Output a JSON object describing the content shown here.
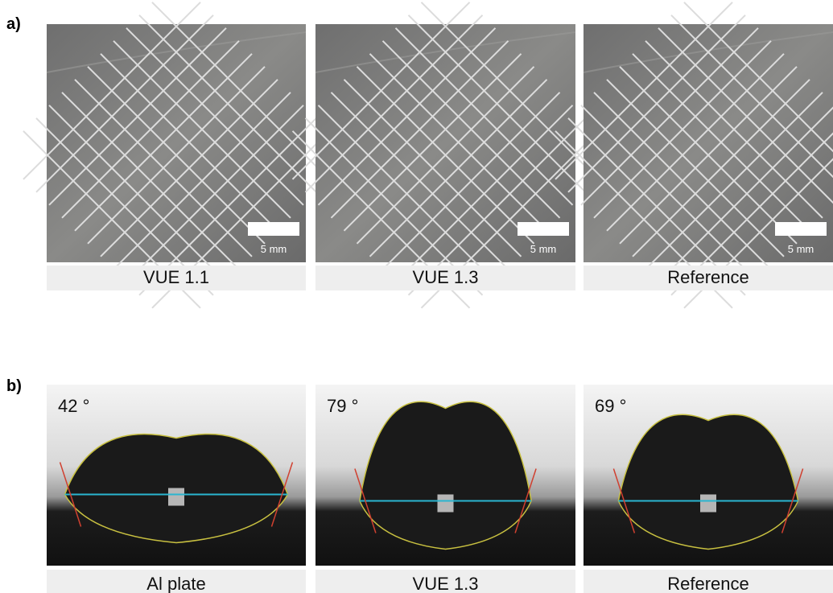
{
  "panel_a": {
    "label": "a)",
    "images": [
      {
        "caption": "VUE 1.1",
        "scale_bar": "5 mm"
      },
      {
        "caption": "VUE 1.3",
        "scale_bar": "5 mm"
      },
      {
        "caption": "Reference",
        "scale_bar": "5 mm"
      }
    ]
  },
  "panel_b": {
    "label": "b)",
    "images": [
      {
        "caption": "Al plate",
        "angle": "42 °"
      },
      {
        "caption": "VUE 1.3",
        "angle": "79 °"
      },
      {
        "caption": "Reference",
        "angle": "69 °"
      }
    ]
  }
}
